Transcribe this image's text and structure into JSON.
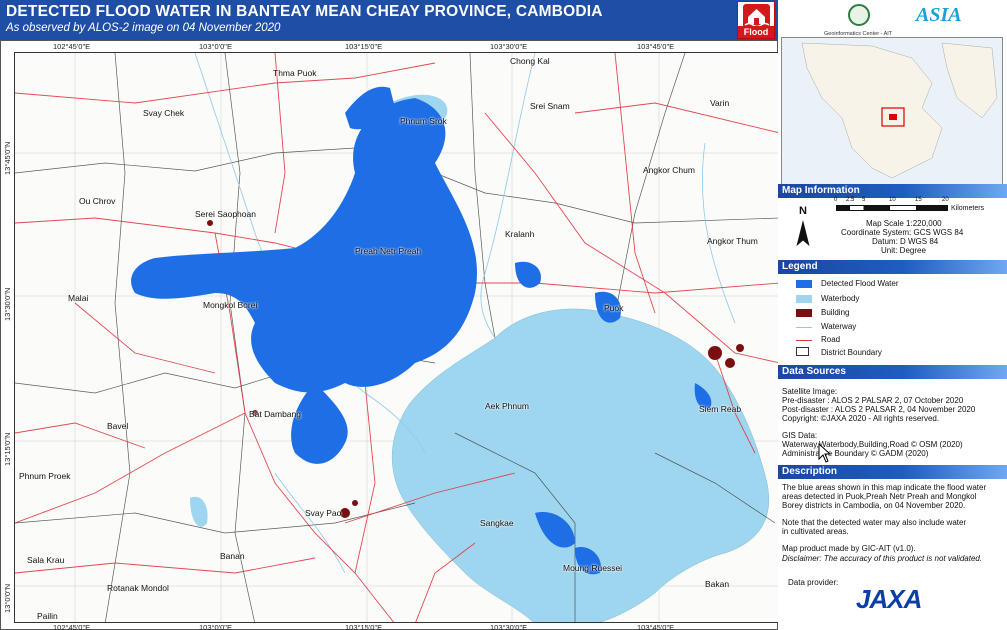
{
  "header": {
    "title": "DETECTED FLOOD WATER IN BANTEAY MEAN CHEAY PROVINCE, CAMBODIA",
    "subtitle": "As observed by ALOS-2  image on 04 November 2020",
    "badge_label": "Flood"
  },
  "map": {
    "lon_labels": [
      "102°45'0\"E",
      "103°0'0\"E",
      "103°15'0\"E",
      "103°30'0\"E",
      "103°45'0\"E"
    ],
    "lat_labels": [
      "13°45'0\"N",
      "13°30'0\"N",
      "13°15'0\"N",
      "13°0'0\"N"
    ],
    "places": [
      "Thma Puok",
      "Chong Kal",
      "Svay Chek",
      "Srei Snam",
      "Varin",
      "Phnum Srok",
      "Angkor Chum",
      "Ou Chrov",
      "Serei Saophoan",
      "Kralanh",
      "Angkor Thum",
      "Preah Netr Preah",
      "Malai",
      "Mongkol Borei",
      "Puok",
      "Siem Reab",
      "Bat Dambang",
      "Aek Phnum",
      "Bavel",
      "Phnum Proek",
      "Svay Pao",
      "Sangkae",
      "Banan",
      "Moung Ruessei",
      "Sala Krau",
      "Rotanak Mondol",
      "Bakan",
      "Pailin"
    ]
  },
  "panel": {
    "gic_caption": "Geoinformatics Center - AIT",
    "ait_logo": "ASIA",
    "map_info": {
      "heading": "Map Information",
      "north": "N",
      "scale_ticks": [
        "0",
        "2.5",
        "5",
        "10",
        "15",
        "20"
      ],
      "scale_unit": "Kilometers",
      "lines": [
        "Map Scale 1:220,000",
        "Coordinate System: GCS WGS 84",
        "Datum: D WGS 84",
        "Unit: Degree"
      ]
    },
    "legend": {
      "heading": "Legend",
      "items": [
        "Detected Flood Water",
        "Waterbody",
        "Building",
        "Waterway",
        "Road",
        "District Boundary"
      ]
    },
    "data_sources": {
      "heading": "Data Sources",
      "lines": [
        "Satellite Image:",
        "Pre-disaster    : ALOS 2 PALSAR 2,  07 October 2020",
        "Post-disaster  : ALOS 2 PALSAR 2,  04 November 2020",
        "Copyright: ©JAXA 2020 - All rights reserved.",
        "GIS Data:",
        "Waterway,Waterbody,Building,Road © OSM (2020)",
        "Administrative Boundary © GADM (2020)"
      ]
    },
    "description": {
      "heading": "Description",
      "lines": [
        "The blue areas shown in this map indicate the flood water",
        "areas detected in Puok,Preah Netr Preah and Mongkol",
        "Borey districts in Cambodia, on 04 November 2020.",
        "Note that the detected water may also include water",
        "in cultivated areas.",
        "Map product made by GIC-AIT (v1.0).",
        "Disclaimer: The accuracy of this product is not validated."
      ]
    },
    "provider": {
      "label": "Data provider:",
      "logo": "JAXA"
    }
  },
  "colors": {
    "header_bg": "#1f4ea6",
    "flood": "#1e6fe6",
    "waterbody": "#9fd6ef",
    "building": "#7a0f12",
    "road": "#e0353d",
    "waterway": "#8ec9ec",
    "boundary": "#333333"
  }
}
